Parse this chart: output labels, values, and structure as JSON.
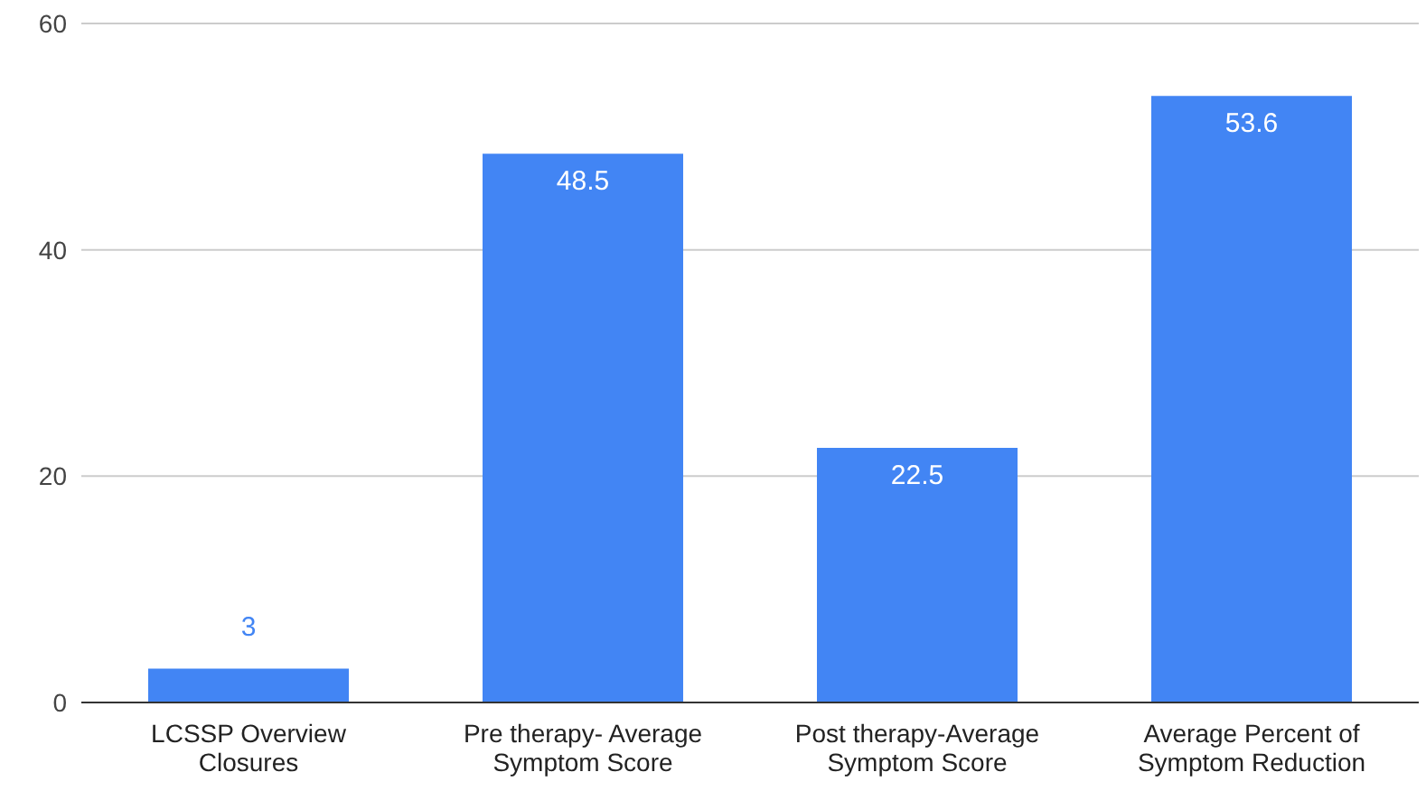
{
  "chart_data": {
    "type": "bar",
    "categories": [
      "LCSSP Overview Closures",
      "Pre therapy- Average Symptom Score",
      "Post therapy-Average Symptom Score",
      "Average Percent of Symptom Reduction"
    ],
    "values": [
      3,
      48.5,
      22.5,
      53.6
    ],
    "color": "#4285f4",
    "ylim": [
      0,
      60
    ],
    "yticks": [
      0,
      20,
      40,
      60
    ],
    "grid": "y",
    "data_labels": true
  }
}
